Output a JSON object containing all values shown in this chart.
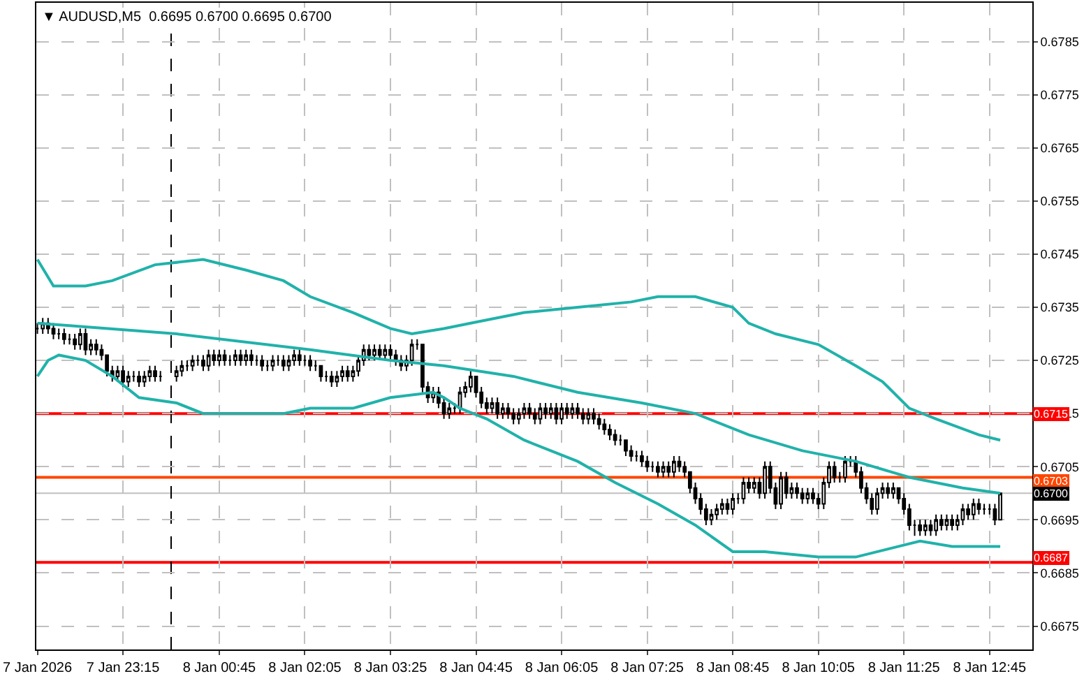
{
  "chart_data": {
    "type": "candlestick",
    "title": "▼ AUDUSD,M5  0.6695 0.6700 0.6695 0.6700",
    "x": [
      "2026-01-07T21:55",
      "2026-01-07T22:00",
      "2026-01-07T22:05",
      "2026-01-07T22:10",
      "2026-01-07T22:15",
      "2026-01-07T22:20",
      "2026-01-07T22:25",
      "2026-01-07T22:30",
      "2026-01-07T22:35",
      "2026-01-07T22:40",
      "2026-01-07T22:45",
      "2026-01-07T22:50",
      "2026-01-07T22:55",
      "2026-01-07T23:00",
      "2026-01-07T23:05",
      "2026-01-07T23:10",
      "2026-01-07T23:15",
      "2026-01-07T23:20",
      "2026-01-07T23:25",
      "2026-01-07T23:30",
      "2026-01-07T23:35",
      "2026-01-07T23:40",
      "2026-01-07T23:45",
      "2026-01-07T23:50",
      "2026-01-08T00:05",
      "2026-01-08T00:10",
      "2026-01-08T00:15",
      "2026-01-08T00:20",
      "2026-01-08T00:25",
      "2026-01-08T00:30",
      "2026-01-08T00:35",
      "2026-01-08T00:40",
      "2026-01-08T00:45",
      "2026-01-08T00:50",
      "2026-01-08T00:55",
      "2026-01-08T01:00",
      "2026-01-08T01:05",
      "2026-01-08T01:10",
      "2026-01-08T01:15",
      "2026-01-08T01:20",
      "2026-01-08T01:25",
      "2026-01-08T01:30",
      "2026-01-08T01:35",
      "2026-01-08T01:40",
      "2026-01-08T01:45",
      "2026-01-08T01:50",
      "2026-01-08T01:55",
      "2026-01-08T02:00",
      "2026-01-08T02:05",
      "2026-01-08T02:10",
      "2026-01-08T02:15",
      "2026-01-08T02:20",
      "2026-01-08T02:25",
      "2026-01-08T02:30",
      "2026-01-08T02:35",
      "2026-01-08T02:40",
      "2026-01-08T02:45",
      "2026-01-08T02:50",
      "2026-01-08T02:55",
      "2026-01-08T03:00",
      "2026-01-08T03:05",
      "2026-01-08T03:10",
      "2026-01-08T03:15",
      "2026-01-08T03:20",
      "2026-01-08T03:25",
      "2026-01-08T03:30",
      "2026-01-08T03:35",
      "2026-01-08T03:40",
      "2026-01-08T03:45",
      "2026-01-08T03:50",
      "2026-01-08T03:55",
      "2026-01-08T04:00",
      "2026-01-08T04:05",
      "2026-01-08T04:10",
      "2026-01-08T04:15",
      "2026-01-08T04:20",
      "2026-01-08T04:25",
      "2026-01-08T04:30",
      "2026-01-08T04:35",
      "2026-01-08T04:40",
      "2026-01-08T04:45",
      "2026-01-08T04:50",
      "2026-01-08T04:55",
      "2026-01-08T05:00",
      "2026-01-08T05:05",
      "2026-01-08T05:10",
      "2026-01-08T05:15",
      "2026-01-08T05:20",
      "2026-01-08T05:25",
      "2026-01-08T05:30",
      "2026-01-08T05:35",
      "2026-01-08T05:40",
      "2026-01-08T05:45",
      "2026-01-08T05:50",
      "2026-01-08T05:55",
      "2026-01-08T06:00",
      "2026-01-08T06:05",
      "2026-01-08T06:10",
      "2026-01-08T06:15",
      "2026-01-08T06:20",
      "2026-01-08T06:25",
      "2026-01-08T06:30",
      "2026-01-08T06:35",
      "2026-01-08T06:40",
      "2026-01-08T06:45",
      "2026-01-08T06:50",
      "2026-01-08T06:55",
      "2026-01-08T07:00",
      "2026-01-08T07:05",
      "2026-01-08T07:10",
      "2026-01-08T07:15",
      "2026-01-08T07:20",
      "2026-01-08T07:25",
      "2026-01-08T07:30",
      "2026-01-08T07:35",
      "2026-01-08T07:40",
      "2026-01-08T07:45",
      "2026-01-08T07:50",
      "2026-01-08T07:55",
      "2026-01-08T08:00",
      "2026-01-08T08:05",
      "2026-01-08T08:10",
      "2026-01-08T08:15",
      "2026-01-08T08:20",
      "2026-01-08T08:25",
      "2026-01-08T08:30",
      "2026-01-08T08:35",
      "2026-01-08T08:40",
      "2026-01-08T08:45",
      "2026-01-08T08:50",
      "2026-01-08T08:55",
      "2026-01-08T09:00",
      "2026-01-08T09:05",
      "2026-01-08T09:10",
      "2026-01-08T09:15",
      "2026-01-08T09:20",
      "2026-01-08T09:25",
      "2026-01-08T09:30",
      "2026-01-08T09:35",
      "2026-01-08T09:40",
      "2026-01-08T09:45",
      "2026-01-08T09:50",
      "2026-01-08T09:55",
      "2026-01-08T10:00",
      "2026-01-08T10:05",
      "2026-01-08T10:10",
      "2026-01-08T10:15",
      "2026-01-08T10:20",
      "2026-01-08T10:25",
      "2026-01-08T10:30",
      "2026-01-08T10:35",
      "2026-01-08T10:40",
      "2026-01-08T10:45",
      "2026-01-08T10:50",
      "2026-01-08T10:55",
      "2026-01-08T11:00",
      "2026-01-08T11:05",
      "2026-01-08T11:10",
      "2026-01-08T11:15",
      "2026-01-08T11:20",
      "2026-01-08T11:25",
      "2026-01-08T11:30",
      "2026-01-08T11:35",
      "2026-01-08T11:40",
      "2026-01-08T11:45",
      "2026-01-08T11:50",
      "2026-01-08T11:55",
      "2026-01-08T12:00",
      "2026-01-08T12:05",
      "2026-01-08T12:10",
      "2026-01-08T12:15",
      "2026-01-08T12:20",
      "2026-01-08T12:25",
      "2026-01-08T12:30",
      "2026-01-08T12:35",
      "2026-01-08T12:40",
      "2026-01-08T12:45",
      "2026-01-08T12:50",
      "2026-01-08T12:55"
    ],
    "ohlc": [
      [
        0.6731,
        0.6732,
        0.673,
        0.6731
      ],
      [
        0.6731,
        0.6733,
        0.673,
        0.6732
      ],
      [
        0.6732,
        0.6733,
        0.673,
        0.6731
      ],
      [
        0.6731,
        0.6732,
        0.6729,
        0.673
      ],
      [
        0.673,
        0.6731,
        0.6729,
        0.673
      ],
      [
        0.673,
        0.6731,
        0.6728,
        0.6729
      ],
      [
        0.6729,
        0.673,
        0.6728,
        0.6729
      ],
      [
        0.6729,
        0.673,
        0.6727,
        0.6728
      ],
      [
        0.6728,
        0.6731,
        0.6727,
        0.673
      ],
      [
        0.673,
        0.6731,
        0.6726,
        0.6727
      ],
      [
        0.6727,
        0.6729,
        0.6726,
        0.6728
      ],
      [
        0.6728,
        0.6729,
        0.6726,
        0.6727
      ],
      [
        0.6727,
        0.6728,
        0.6725,
        0.6726
      ],
      [
        0.6726,
        0.6726,
        0.6722,
        0.6723
      ],
      [
        0.6723,
        0.6724,
        0.6721,
        0.6722
      ],
      [
        0.6722,
        0.6724,
        0.6721,
        0.6723
      ],
      [
        0.6723,
        0.6724,
        0.672,
        0.6721
      ],
      [
        0.6721,
        0.6723,
        0.672,
        0.6722
      ],
      [
        0.6722,
        0.6723,
        0.6721,
        0.6722
      ],
      [
        0.6722,
        0.6723,
        0.672,
        0.6721
      ],
      [
        0.6721,
        0.6723,
        0.672,
        0.6722
      ],
      [
        0.6722,
        0.6724,
        0.6721,
        0.6723
      ],
      [
        0.6723,
        0.6724,
        0.6721,
        0.6722
      ],
      [
        0.6722,
        0.6723,
        0.6721,
        0.6722
      ],
      [
        0.6722,
        0.6724,
        0.6721,
        0.6723
      ],
      [
        0.6723,
        0.6725,
        0.6722,
        0.6724
      ],
      [
        0.6724,
        0.6725,
        0.6723,
        0.6724
      ],
      [
        0.6724,
        0.6726,
        0.6723,
        0.6725
      ],
      [
        0.6725,
        0.6726,
        0.6724,
        0.6725
      ],
      [
        0.6725,
        0.6726,
        0.6723,
        0.6724
      ],
      [
        0.6724,
        0.6727,
        0.6723,
        0.6726
      ],
      [
        0.6726,
        0.6727,
        0.6724,
        0.6725
      ],
      [
        0.6725,
        0.6727,
        0.6724,
        0.6726
      ],
      [
        0.6726,
        0.6727,
        0.6724,
        0.6725
      ],
      [
        0.6725,
        0.6726,
        0.6724,
        0.6725
      ],
      [
        0.6725,
        0.6727,
        0.6724,
        0.6726
      ],
      [
        0.6726,
        0.6727,
        0.6724,
        0.6725
      ],
      [
        0.6725,
        0.6727,
        0.6724,
        0.6726
      ],
      [
        0.6726,
        0.6727,
        0.6724,
        0.6725
      ],
      [
        0.6725,
        0.6726,
        0.6724,
        0.6725
      ],
      [
        0.6725,
        0.6726,
        0.6723,
        0.6724
      ],
      [
        0.6724,
        0.6725,
        0.6723,
        0.6724
      ],
      [
        0.6724,
        0.6726,
        0.6723,
        0.6725
      ],
      [
        0.6725,
        0.6726,
        0.6724,
        0.6725
      ],
      [
        0.6725,
        0.6726,
        0.6723,
        0.6724
      ],
      [
        0.6724,
        0.6726,
        0.6723,
        0.6725
      ],
      [
        0.6725,
        0.6727,
        0.6724,
        0.6726
      ],
      [
        0.6726,
        0.6727,
        0.6724,
        0.6725
      ],
      [
        0.6725,
        0.6726,
        0.6724,
        0.6725
      ],
      [
        0.6725,
        0.6726,
        0.6723,
        0.6724
      ],
      [
        0.6724,
        0.6725,
        0.6723,
        0.6724
      ],
      [
        0.6724,
        0.6724,
        0.6721,
        0.6722
      ],
      [
        0.6722,
        0.6723,
        0.6721,
        0.6722
      ],
      [
        0.6722,
        0.6723,
        0.672,
        0.6721
      ],
      [
        0.6721,
        0.6723,
        0.672,
        0.6722
      ],
      [
        0.6722,
        0.6724,
        0.6721,
        0.6723
      ],
      [
        0.6723,
        0.6724,
        0.6721,
        0.6722
      ],
      [
        0.6722,
        0.6724,
        0.6721,
        0.6723
      ],
      [
        0.6723,
        0.6726,
        0.6722,
        0.6725
      ],
      [
        0.6725,
        0.6728,
        0.6724,
        0.6727
      ],
      [
        0.6727,
        0.6728,
        0.6725,
        0.6726
      ],
      [
        0.6726,
        0.6728,
        0.6725,
        0.6727
      ],
      [
        0.6727,
        0.6728,
        0.6725,
        0.6726
      ],
      [
        0.6726,
        0.6728,
        0.6725,
        0.6727
      ],
      [
        0.6727,
        0.6728,
        0.6725,
        0.6726
      ],
      [
        0.6726,
        0.6727,
        0.6724,
        0.6725
      ],
      [
        0.6725,
        0.6726,
        0.6723,
        0.6724
      ],
      [
        0.6724,
        0.6726,
        0.6723,
        0.6725
      ],
      [
        0.6725,
        0.6729,
        0.6724,
        0.6728
      ],
      [
        0.6728,
        0.6729,
        0.6727,
        0.6728
      ],
      [
        0.6728,
        0.6728,
        0.6719,
        0.672
      ],
      [
        0.672,
        0.6721,
        0.6717,
        0.6718
      ],
      [
        0.6718,
        0.672,
        0.6717,
        0.6719
      ],
      [
        0.6719,
        0.672,
        0.6716,
        0.6717
      ],
      [
        0.6717,
        0.6718,
        0.6714,
        0.6715
      ],
      [
        0.6715,
        0.6717,
        0.6714,
        0.6716
      ],
      [
        0.6716,
        0.6717,
        0.6715,
        0.6716
      ],
      [
        0.6716,
        0.672,
        0.6715,
        0.6719
      ],
      [
        0.6719,
        0.6721,
        0.6718,
        0.672
      ],
      [
        0.672,
        0.6723,
        0.6719,
        0.6722
      ],
      [
        0.6722,
        0.6722,
        0.6718,
        0.6719
      ],
      [
        0.6719,
        0.672,
        0.6716,
        0.6717
      ],
      [
        0.6717,
        0.6718,
        0.6715,
        0.6716
      ],
      [
        0.6716,
        0.6718,
        0.6715,
        0.6717
      ],
      [
        0.6717,
        0.6718,
        0.6714,
        0.6715
      ],
      [
        0.6715,
        0.6717,
        0.6714,
        0.6716
      ],
      [
        0.6716,
        0.6717,
        0.6714,
        0.6715
      ],
      [
        0.6715,
        0.6716,
        0.6713,
        0.6714
      ],
      [
        0.6714,
        0.6716,
        0.6713,
        0.6715
      ],
      [
        0.6715,
        0.6717,
        0.6714,
        0.6716
      ],
      [
        0.6716,
        0.6717,
        0.6714,
        0.6715
      ],
      [
        0.6715,
        0.6716,
        0.6713,
        0.6714
      ],
      [
        0.6714,
        0.6717,
        0.6713,
        0.6716
      ],
      [
        0.6716,
        0.6717,
        0.6714,
        0.6715
      ],
      [
        0.6715,
        0.6717,
        0.6714,
        0.6716
      ],
      [
        0.6716,
        0.6717,
        0.6713,
        0.6714
      ],
      [
        0.6714,
        0.6717,
        0.6713,
        0.6716
      ],
      [
        0.6716,
        0.6717,
        0.6714,
        0.6715
      ],
      [
        0.6715,
        0.6717,
        0.6714,
        0.6716
      ],
      [
        0.6716,
        0.6717,
        0.6714,
        0.6715
      ],
      [
        0.6715,
        0.6716,
        0.6713,
        0.6714
      ],
      [
        0.6714,
        0.6716,
        0.6713,
        0.6715
      ],
      [
        0.6715,
        0.6716,
        0.6713,
        0.6714
      ],
      [
        0.6714,
        0.6715,
        0.6712,
        0.6713
      ],
      [
        0.6713,
        0.6714,
        0.6711,
        0.6712
      ],
      [
        0.6712,
        0.6713,
        0.671,
        0.6711
      ],
      [
        0.6711,
        0.6712,
        0.6709,
        0.671
      ],
      [
        0.671,
        0.6711,
        0.6709,
        0.671
      ],
      [
        0.671,
        0.671,
        0.6707,
        0.6708
      ],
      [
        0.6708,
        0.6709,
        0.6706,
        0.6707
      ],
      [
        0.6707,
        0.6708,
        0.6706,
        0.6707
      ],
      [
        0.6707,
        0.6708,
        0.6705,
        0.6706
      ],
      [
        0.6706,
        0.6707,
        0.6704,
        0.6705
      ],
      [
        0.6705,
        0.6706,
        0.6704,
        0.6705
      ],
      [
        0.6705,
        0.6706,
        0.6703,
        0.6704
      ],
      [
        0.6704,
        0.6706,
        0.6703,
        0.6705
      ],
      [
        0.6705,
        0.6706,
        0.6703,
        0.6704
      ],
      [
        0.6704,
        0.6707,
        0.6703,
        0.6706
      ],
      [
        0.6706,
        0.6707,
        0.6704,
        0.6705
      ],
      [
        0.6705,
        0.6706,
        0.6703,
        0.6704
      ],
      [
        0.6704,
        0.6704,
        0.67,
        0.6701
      ],
      [
        0.6701,
        0.6702,
        0.6698,
        0.6699
      ],
      [
        0.6699,
        0.67,
        0.6696,
        0.6697
      ],
      [
        0.6697,
        0.6698,
        0.6694,
        0.6695
      ],
      [
        0.6695,
        0.6697,
        0.6694,
        0.6696
      ],
      [
        0.6696,
        0.6698,
        0.6695,
        0.6697
      ],
      [
        0.6697,
        0.6699,
        0.6696,
        0.6698
      ],
      [
        0.6698,
        0.6699,
        0.6696,
        0.6697
      ],
      [
        0.6697,
        0.67,
        0.6696,
        0.6699
      ],
      [
        0.6699,
        0.67,
        0.6698,
        0.6699
      ],
      [
        0.6699,
        0.6703,
        0.6698,
        0.6702
      ],
      [
        0.6702,
        0.6703,
        0.67,
        0.6701
      ],
      [
        0.6701,
        0.6703,
        0.67,
        0.6702
      ],
      [
        0.6702,
        0.6703,
        0.6699,
        0.67
      ],
      [
        0.67,
        0.6706,
        0.6699,
        0.6705
      ],
      [
        0.6705,
        0.6706,
        0.67,
        0.6701
      ],
      [
        0.6701,
        0.6702,
        0.6697,
        0.6698
      ],
      [
        0.6698,
        0.6704,
        0.6697,
        0.6703
      ],
      [
        0.6703,
        0.6704,
        0.6699,
        0.67
      ],
      [
        0.67,
        0.6702,
        0.6699,
        0.6701
      ],
      [
        0.6701,
        0.6702,
        0.6699,
        0.67
      ],
      [
        0.67,
        0.6701,
        0.6698,
        0.6699
      ],
      [
        0.6699,
        0.6701,
        0.6698,
        0.67
      ],
      [
        0.67,
        0.6701,
        0.6698,
        0.6699
      ],
      [
        0.6699,
        0.67,
        0.6697,
        0.6698
      ],
      [
        0.6698,
        0.6703,
        0.6697,
        0.6702
      ],
      [
        0.6702,
        0.6706,
        0.6701,
        0.6705
      ],
      [
        0.6705,
        0.6706,
        0.6702,
        0.6703
      ],
      [
        0.6703,
        0.6704,
        0.6702,
        0.6703
      ],
      [
        0.6703,
        0.6707,
        0.6702,
        0.6706
      ],
      [
        0.6706,
        0.6707,
        0.6705,
        0.6706
      ],
      [
        0.6706,
        0.6707,
        0.6703,
        0.6704
      ],
      [
        0.6704,
        0.6705,
        0.67,
        0.6701
      ],
      [
        0.6701,
        0.6702,
        0.6698,
        0.6699
      ],
      [
        0.6699,
        0.67,
        0.6696,
        0.6697
      ],
      [
        0.6697,
        0.6701,
        0.6696,
        0.67
      ],
      [
        0.67,
        0.6702,
        0.6699,
        0.6701
      ],
      [
        0.6701,
        0.6702,
        0.6699,
        0.67
      ],
      [
        0.67,
        0.6702,
        0.6699,
        0.6701
      ],
      [
        0.6701,
        0.6701,
        0.6698,
        0.6699
      ],
      [
        0.6699,
        0.67,
        0.6696,
        0.6697
      ],
      [
        0.6697,
        0.6698,
        0.6693,
        0.6694
      ],
      [
        0.6694,
        0.6695,
        0.6692,
        0.6694
      ],
      [
        0.6694,
        0.6695,
        0.6692,
        0.6693
      ],
      [
        0.6693,
        0.6695,
        0.6692,
        0.6694
      ],
      [
        0.6694,
        0.6695,
        0.6692,
        0.6693
      ],
      [
        0.6693,
        0.6696,
        0.6692,
        0.6695
      ],
      [
        0.6695,
        0.6696,
        0.6693,
        0.6694
      ],
      [
        0.6694,
        0.6696,
        0.6693,
        0.6695
      ],
      [
        0.6695,
        0.6696,
        0.6693,
        0.6694
      ],
      [
        0.6694,
        0.6696,
        0.6693,
        0.6695
      ],
      [
        0.6695,
        0.6698,
        0.6694,
        0.6697
      ],
      [
        0.6697,
        0.6698,
        0.6695,
        0.6696
      ],
      [
        0.6696,
        0.6699,
        0.6695,
        0.6698
      ],
      [
        0.6698,
        0.6699,
        0.6696,
        0.6697
      ],
      [
        0.6697,
        0.6698,
        0.6696,
        0.6697
      ],
      [
        0.6697,
        0.6698,
        0.6696,
        0.6697
      ],
      [
        0.6697,
        0.6698,
        0.6694,
        0.6695
      ],
      [
        0.6695,
        0.67,
        0.6695,
        0.67
      ]
    ],
    "series": [
      {
        "type": "line",
        "color": "#20b2aa",
        "x": [
          "2026-01-07T21:55",
          "2026-01-07T22:10",
          "2026-01-07T22:40",
          "2026-01-07T23:05",
          "2026-01-07T23:45",
          "2026-01-08T00:30",
          "2026-01-08T01:10",
          "2026-01-08T01:45",
          "2026-01-08T02:10",
          "2026-01-08T02:50",
          "2026-01-08T03:25",
          "2026-01-08T03:45",
          "2026-01-08T04:15",
          "2026-01-08T04:40",
          "2026-01-08T05:30",
          "2026-01-08T06:20",
          "2026-01-08T07:10",
          "2026-01-08T07:35",
          "2026-01-08T08:10",
          "2026-01-08T08:45",
          "2026-01-08T09:00",
          "2026-01-08T09:25",
          "2026-01-08T10:05",
          "2026-01-08T10:40",
          "2026-01-08T11:05",
          "2026-01-08T11:30",
          "2026-01-08T11:55",
          "2026-01-08T12:35",
          "2026-01-08T12:55"
        ],
        "values": [
          0.6744,
          0.6739,
          0.6739,
          0.674,
          0.6743,
          0.6744,
          0.6742,
          0.674,
          0.6737,
          0.6734,
          0.6731,
          0.673,
          0.6731,
          0.6732,
          0.6734,
          0.6735,
          0.6736,
          0.6737,
          0.6737,
          0.6735,
          0.6732,
          0.673,
          0.6728,
          0.6724,
          0.6721,
          0.6716,
          0.6714,
          0.6711,
          0.671
        ]
      },
      {
        "type": "line",
        "color": "#20b2aa",
        "x": [
          "2026-01-07T21:55",
          "2026-01-08T00:05",
          "2026-01-08T02:10",
          "2026-01-08T03:25",
          "2026-01-08T04:15",
          "2026-01-08T05:20",
          "2026-01-08T06:20",
          "2026-01-08T07:20",
          "2026-01-08T08:10",
          "2026-01-08T09:00",
          "2026-01-08T09:50",
          "2026-01-08T10:40",
          "2026-01-08T11:30",
          "2026-01-08T12:20",
          "2026-01-08T12:55"
        ],
        "values": [
          0.6732,
          0.673,
          0.6727,
          0.6725,
          0.6724,
          0.6722,
          0.6719,
          0.6717,
          0.6715,
          0.6711,
          0.6708,
          0.6706,
          0.6703,
          0.6701,
          0.67
        ]
      },
      {
        "type": "line",
        "color": "#20b2aa",
        "x": [
          "2026-01-07T21:55",
          "2026-01-07T22:05",
          "2026-01-07T22:15",
          "2026-01-07T22:40",
          "2026-01-07T23:05",
          "2026-01-07T23:30",
          "2026-01-08T00:05",
          "2026-01-08T00:30",
          "2026-01-08T01:10",
          "2026-01-08T01:45",
          "2026-01-08T02:10",
          "2026-01-08T02:50",
          "2026-01-08T03:25",
          "2026-01-08T04:05",
          "2026-01-08T04:15",
          "2026-01-08T04:30",
          "2026-01-08T04:55",
          "2026-01-08T05:30",
          "2026-01-08T06:20",
          "2026-01-08T06:55",
          "2026-01-08T07:35",
          "2026-01-08T08:10",
          "2026-01-08T08:45",
          "2026-01-08T09:15",
          "2026-01-08T10:05",
          "2026-01-08T10:40",
          "2026-01-08T11:20",
          "2026-01-08T11:40",
          "2026-01-08T12:10",
          "2026-01-08T12:55"
        ],
        "values": [
          0.6722,
          0.6725,
          0.6726,
          0.6725,
          0.6722,
          0.6718,
          0.6717,
          0.6715,
          0.6715,
          0.6715,
          0.6716,
          0.6716,
          0.6718,
          0.6719,
          0.6718,
          0.6716,
          0.6714,
          0.671,
          0.6706,
          0.6702,
          0.6698,
          0.6694,
          0.6689,
          0.6689,
          0.6688,
          0.6688,
          0.669,
          0.6691,
          0.669,
          0.669
        ]
      }
    ],
    "xlim": [
      "2026-01-07T21:54",
      "2026-01-08T13:25"
    ],
    "xticks": [
      {
        "value": "2026-01-07T21:55",
        "label": "7 Jan 2026"
      },
      {
        "value": "2026-01-07T23:15",
        "label": "7 Jan 23:15"
      },
      {
        "value": "2026-01-08T00:45",
        "label": "8 Jan 00:45"
      },
      {
        "value": "2026-01-08T02:05",
        "label": "8 Jan 02:05"
      },
      {
        "value": "2026-01-08T03:25",
        "label": "8 Jan 03:25"
      },
      {
        "value": "2026-01-08T04:45",
        "label": "8 Jan 04:45"
      },
      {
        "value": "2026-01-08T06:05",
        "label": "8 Jan 06:05"
      },
      {
        "value": "2026-01-08T07:25",
        "label": "8 Jan 07:25"
      },
      {
        "value": "2026-01-08T08:45",
        "label": "8 Jan 08:45"
      },
      {
        "value": "2026-01-08T10:05",
        "label": "8 Jan 10:05"
      },
      {
        "value": "2026-01-08T11:25",
        "label": "8 Jan 11:25"
      },
      {
        "value": "2026-01-08T12:45",
        "label": "8 Jan 12:45"
      }
    ],
    "ylim": [
      0.66706,
      0.67923
    ],
    "yticks": [
      0.6675,
      0.6685,
      0.6695,
      0.6705,
      0.6715,
      0.6725,
      0.6735,
      0.6745,
      0.6755,
      0.6765,
      0.6775,
      0.6785
    ],
    "ref_lines": [
      {
        "axis": "y",
        "value": 0.6715,
        "label": "0.6715",
        "color": "#ff0000"
      },
      {
        "axis": "y",
        "value": 0.6703,
        "label": "0.6703",
        "color": "#ff4500"
      },
      {
        "axis": "y",
        "value": 0.67,
        "label": "0.6700",
        "color": "#c0c0c0"
      },
      {
        "axis": "y",
        "value": 0.6687,
        "label": "0.6687",
        "color": "#ff0000"
      },
      {
        "axis": "x",
        "value": "2026-01-08T00:00",
        "label": null,
        "color": "#000000",
        "line_style": "dashed"
      }
    ],
    "grid": true
  }
}
